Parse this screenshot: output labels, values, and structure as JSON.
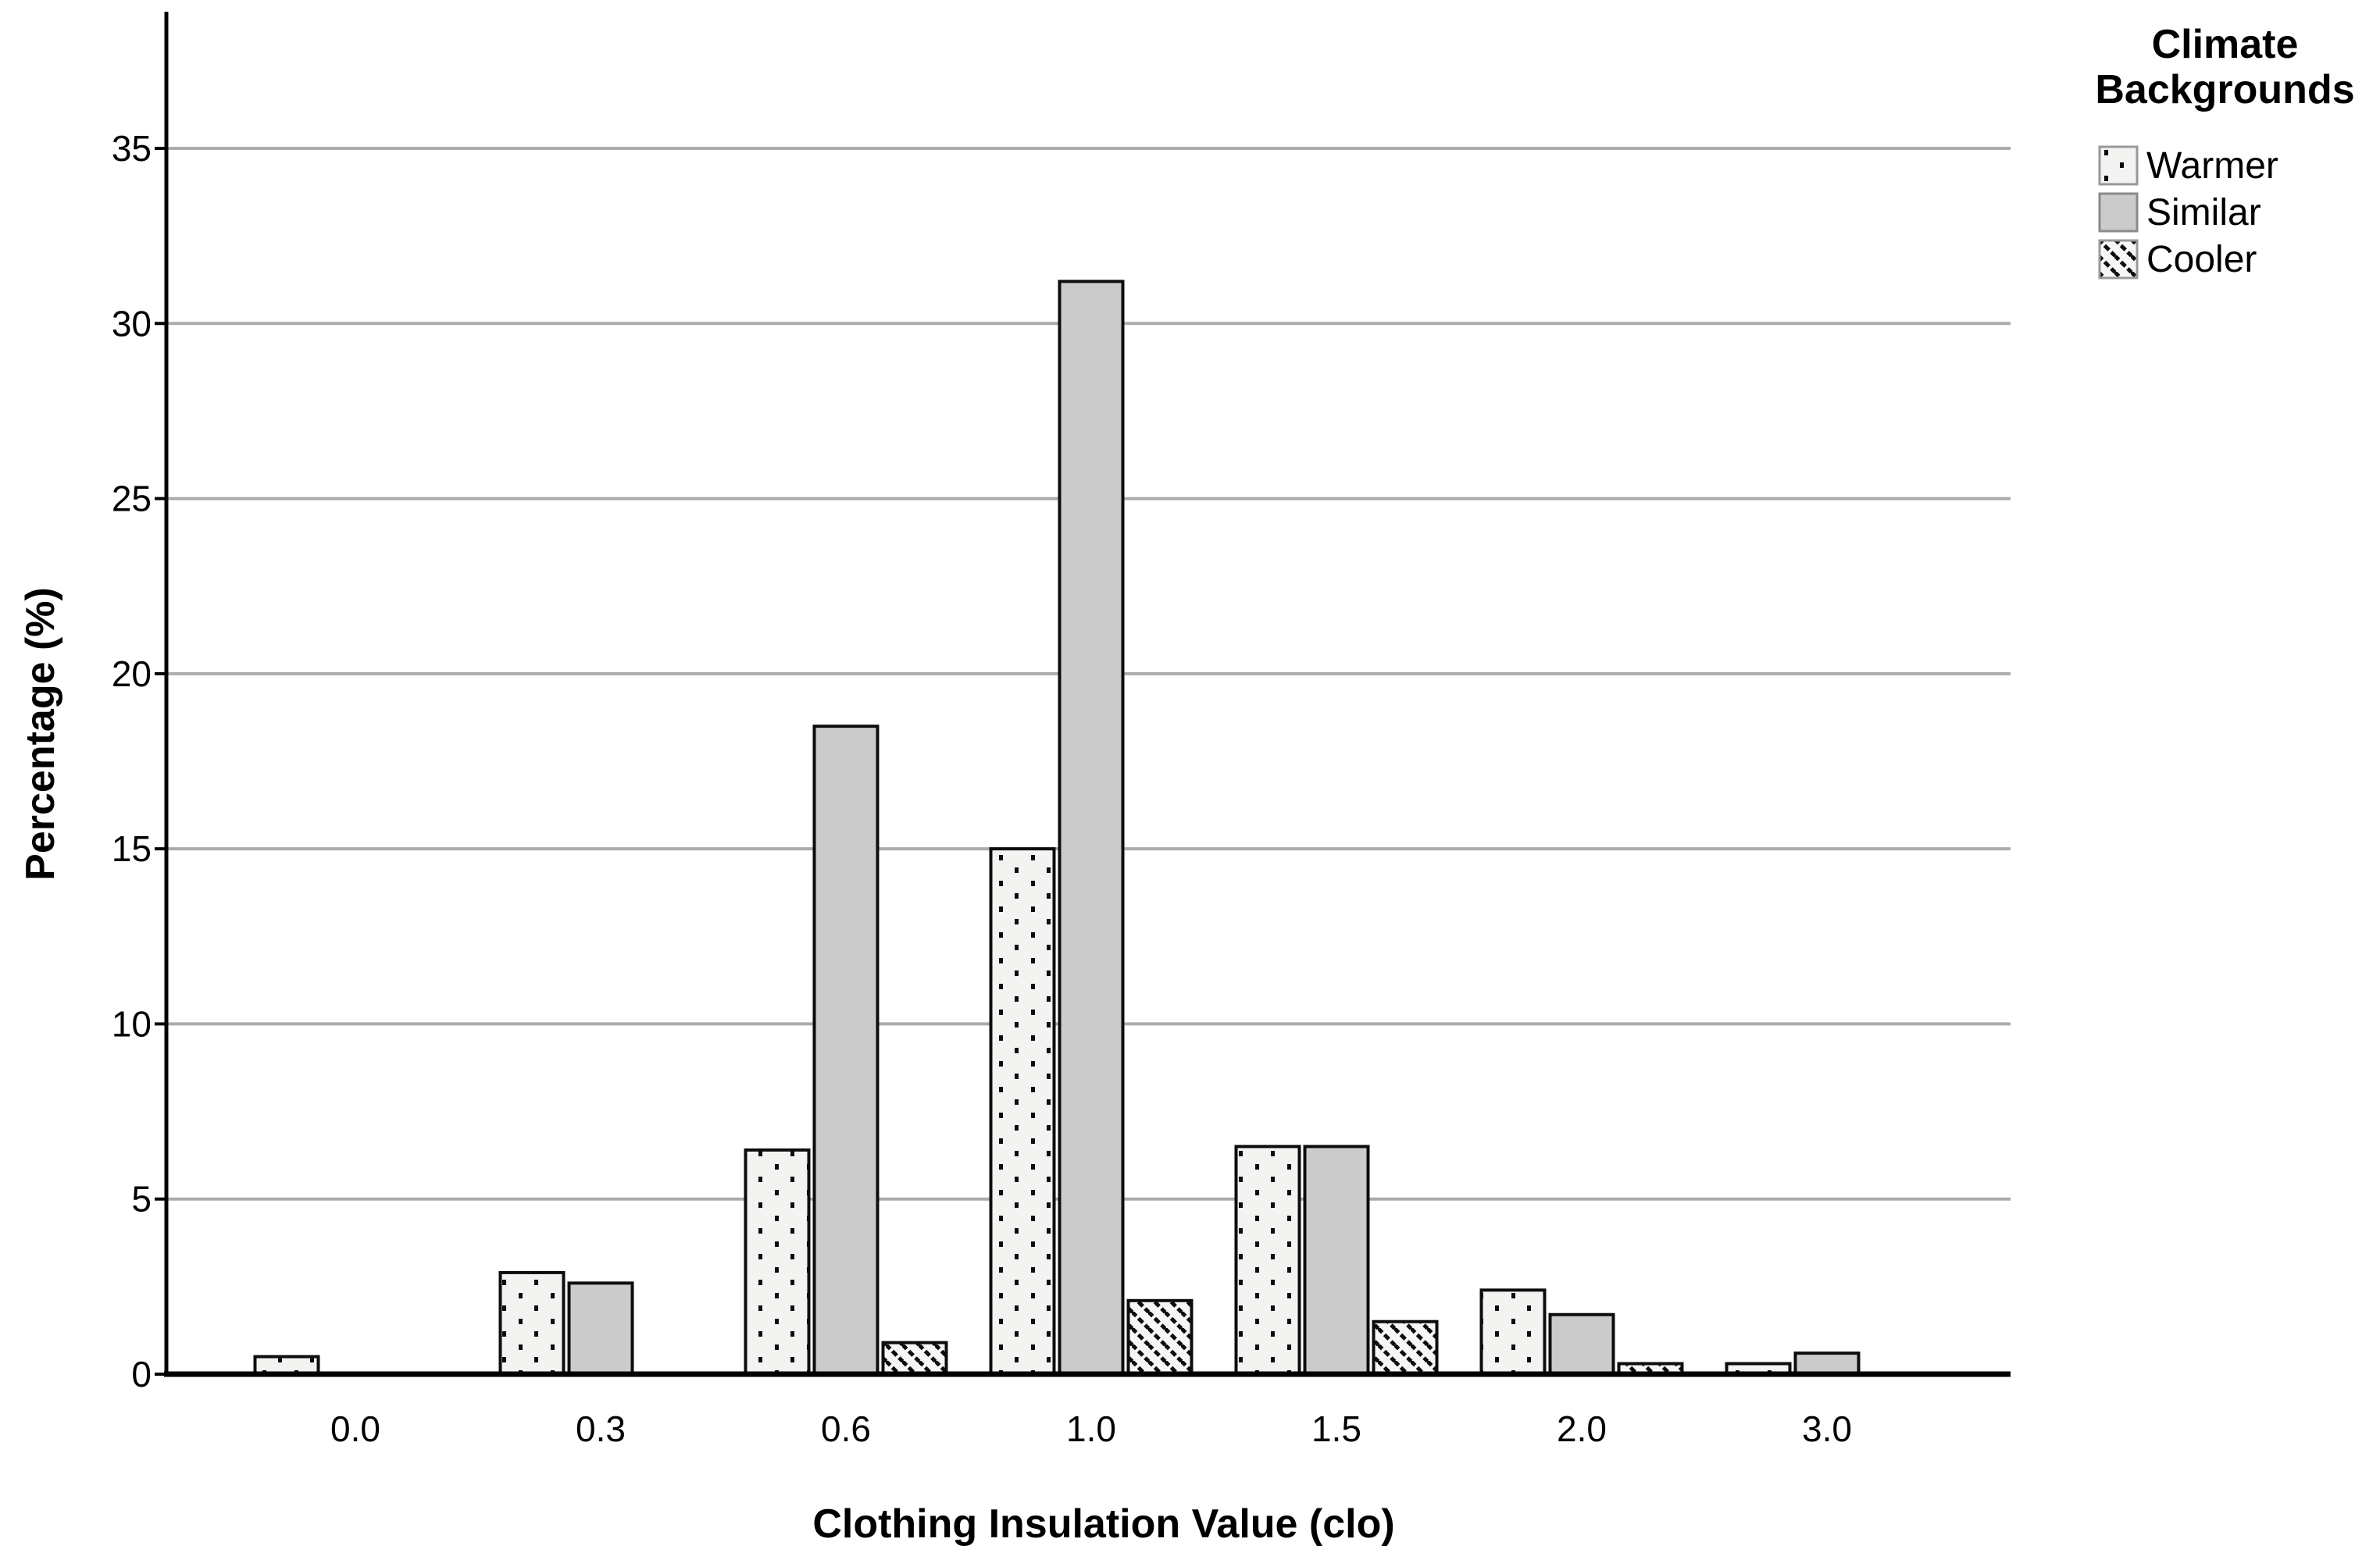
{
  "chart_data": {
    "type": "bar",
    "title": "",
    "xlabel": "Clothing Insulation Value (clo)",
    "ylabel": "Percentage (%)",
    "categories": [
      "0.0",
      "0.3",
      "0.6",
      "1.0",
      "1.5",
      "2.0",
      "3.0"
    ],
    "series": [
      {
        "name": "Warmer",
        "pattern": "dots",
        "values": [
          0.5,
          2.9,
          6.4,
          15.0,
          6.5,
          2.4,
          0.3
        ]
      },
      {
        "name": "Similar",
        "pattern": "solid",
        "values": [
          0,
          2.6,
          18.5,
          31.2,
          6.5,
          1.7,
          0.6
        ]
      },
      {
        "name": "Cooler",
        "pattern": "hatch",
        "values": [
          0,
          0,
          0.9,
          2.1,
          1.5,
          0.3,
          0
        ]
      }
    ],
    "yticks": [
      0,
      5,
      10,
      15,
      20,
      25,
      30,
      35
    ],
    "ylim": [
      0,
      38.9
    ],
    "grid": "horizontal",
    "legend": {
      "title": "Climate Backgrounds",
      "position": "top-right-outside"
    }
  },
  "colors": {
    "bar_border": "#0d0d0d",
    "similar_fill": "#cbcbcb",
    "pattern_bg": "#f3f3f1",
    "pattern_ink": "#0d0d0d",
    "gridline": "#ababab",
    "axis": "#000000",
    "legend_swatch_border": "#999999",
    "text": "#000000"
  }
}
